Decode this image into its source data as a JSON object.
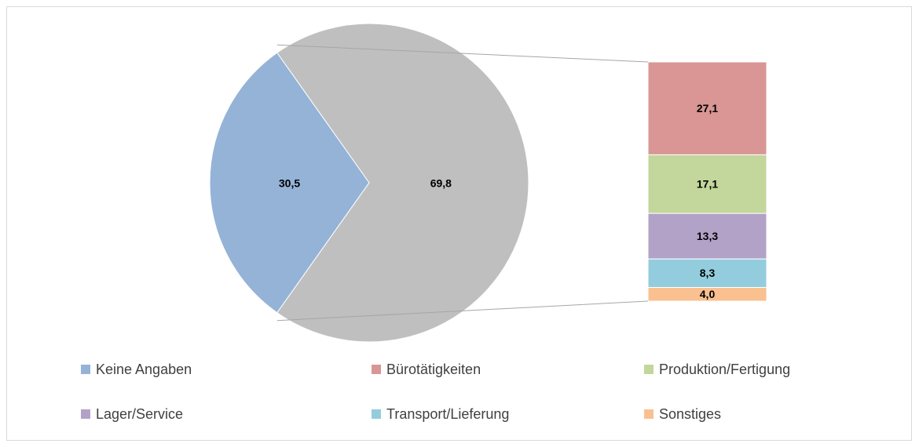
{
  "chart_data": {
    "type": "bar-of-pie",
    "pie": {
      "categories": [
        "Keine Angaben",
        null
      ],
      "values": [
        30.5,
        69.8
      ],
      "value_labels": [
        "30,5",
        "69,8"
      ],
      "colors": [
        "#95b3d7",
        "#bfbfbf"
      ]
    },
    "bar": {
      "categories": [
        "Bürotätigkeiten",
        "Produktion/Fertigung",
        "Lager/Service",
        "Transport/Lieferung",
        "Sonstiges"
      ],
      "values": [
        27.1,
        17.1,
        13.3,
        8.3,
        4.0
      ],
      "value_labels": [
        "27,1",
        "17,1",
        "13,3",
        "8,3",
        "4,0"
      ],
      "colors": [
        "#d99694",
        "#c3d69b",
        "#b3a2c7",
        "#93cddd",
        "#fac090"
      ]
    },
    "legend": "bottom"
  }
}
